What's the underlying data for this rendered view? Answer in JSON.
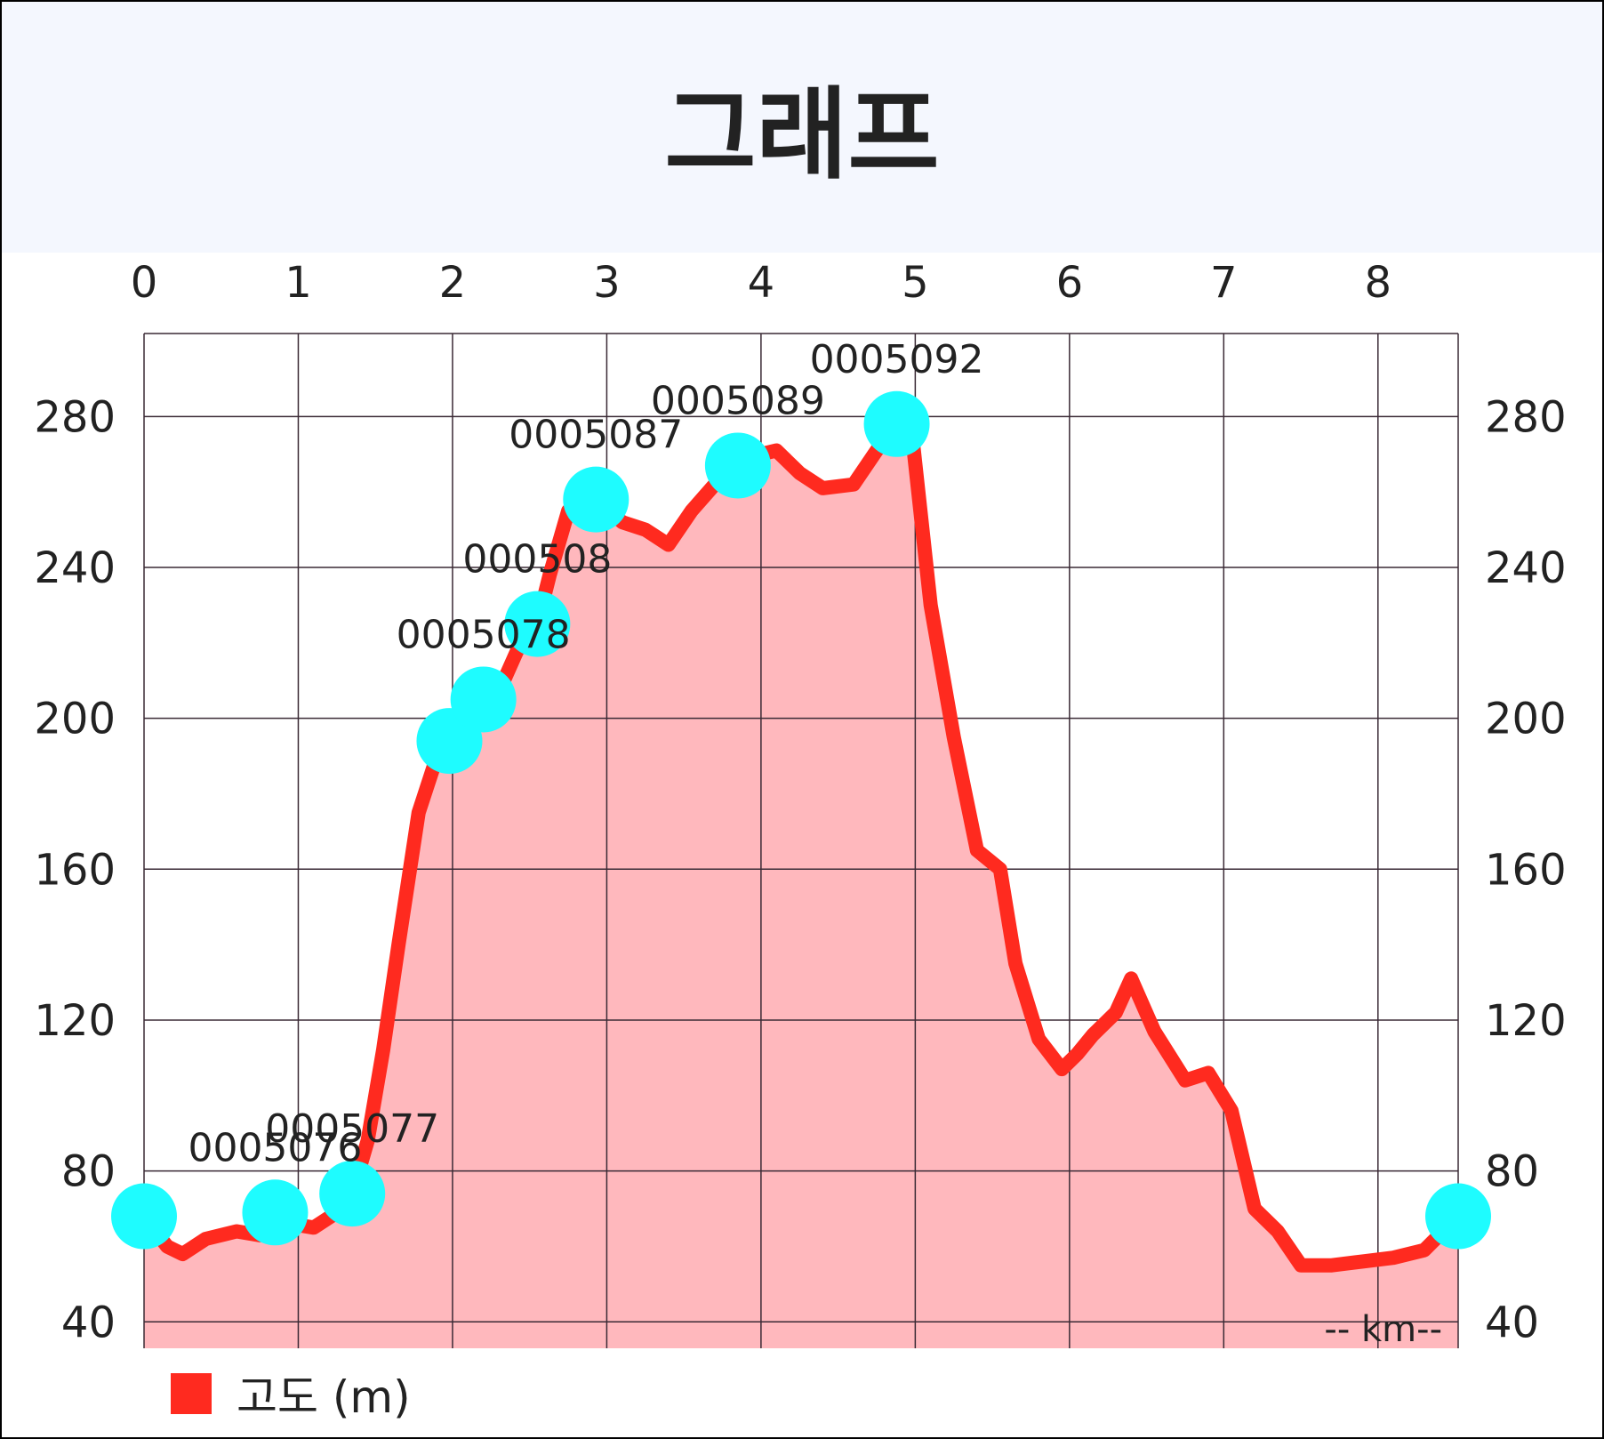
{
  "header": {
    "title": "그래프"
  },
  "chart_data": {
    "type": "area",
    "title": "그래프",
    "xlabel": "-- km--",
    "ylabel": "",
    "xlim": [
      0,
      8.52
    ],
    "ylim": [
      33,
      302
    ],
    "x_ticks": [
      "0",
      "1",
      "2",
      "3",
      "4",
      "5",
      "6",
      "7",
      "8"
    ],
    "y_ticks": [
      "40",
      "80",
      "120",
      "160",
      "200",
      "240",
      "280"
    ],
    "grid": true,
    "legend": {
      "position": "bottom-left",
      "label": "고도 (m)"
    },
    "colors": {
      "line": "#ff2a1f",
      "fill": "#ffb8bd",
      "marker": "#1efcff",
      "header": "#f4f7fe"
    },
    "series": [
      {
        "name": "고도 (m)",
        "x": [
          0,
          0.15,
          0.25,
          0.4,
          0.6,
          0.75,
          0.85,
          0.95,
          1.1,
          1.25,
          1.35,
          1.45,
          1.55,
          1.65,
          1.78,
          1.9,
          1.98,
          2.1,
          2.2,
          2.3,
          2.42,
          2.55,
          2.63,
          2.75,
          2.93,
          3.1,
          3.25,
          3.4,
          3.55,
          3.7,
          3.85,
          4.0,
          4.1,
          4.25,
          4.4,
          4.6,
          4.75,
          4.88,
          4.98,
          5.1,
          5.25,
          5.4,
          5.55,
          5.65,
          5.8,
          5.95,
          6.05,
          6.15,
          6.3,
          6.4,
          6.55,
          6.75,
          6.9,
          7.05,
          7.2,
          7.35,
          7.5,
          7.7,
          7.9,
          8.1,
          8.3,
          8.52
        ],
        "y": [
          68,
          60,
          58,
          62,
          64,
          63,
          69,
          66,
          65,
          69,
          74,
          88,
          112,
          140,
          175,
          190,
          194,
          203,
          205,
          207,
          218,
          225,
          238,
          255,
          258,
          252,
          250,
          246,
          255,
          262,
          267,
          270,
          271,
          265,
          261,
          262,
          271,
          278,
          275,
          230,
          195,
          165,
          160,
          135,
          115,
          107,
          111,
          116,
          122,
          131,
          117,
          104,
          106,
          96,
          70,
          64,
          55,
          55,
          56,
          57,
          59,
          68
        ]
      }
    ],
    "markers": [
      {
        "x": 0,
        "y": 68,
        "label": ""
      },
      {
        "x": 0.85,
        "y": 69,
        "label": "0005076"
      },
      {
        "x": 1.35,
        "y": 74,
        "label": "0005077"
      },
      {
        "x": 1.98,
        "y": 194,
        "label": ""
      },
      {
        "x": 2.2,
        "y": 205,
        "label": "0005078"
      },
      {
        "x": 2.55,
        "y": 225,
        "label": "000508"
      },
      {
        "x": 2.93,
        "y": 258,
        "label": "0005087"
      },
      {
        "x": 3.85,
        "y": 267,
        "label": "0005089"
      },
      {
        "x": 4.88,
        "y": 278,
        "label": "0005092"
      },
      {
        "x": 8.52,
        "y": 68,
        "label": ""
      }
    ]
  }
}
